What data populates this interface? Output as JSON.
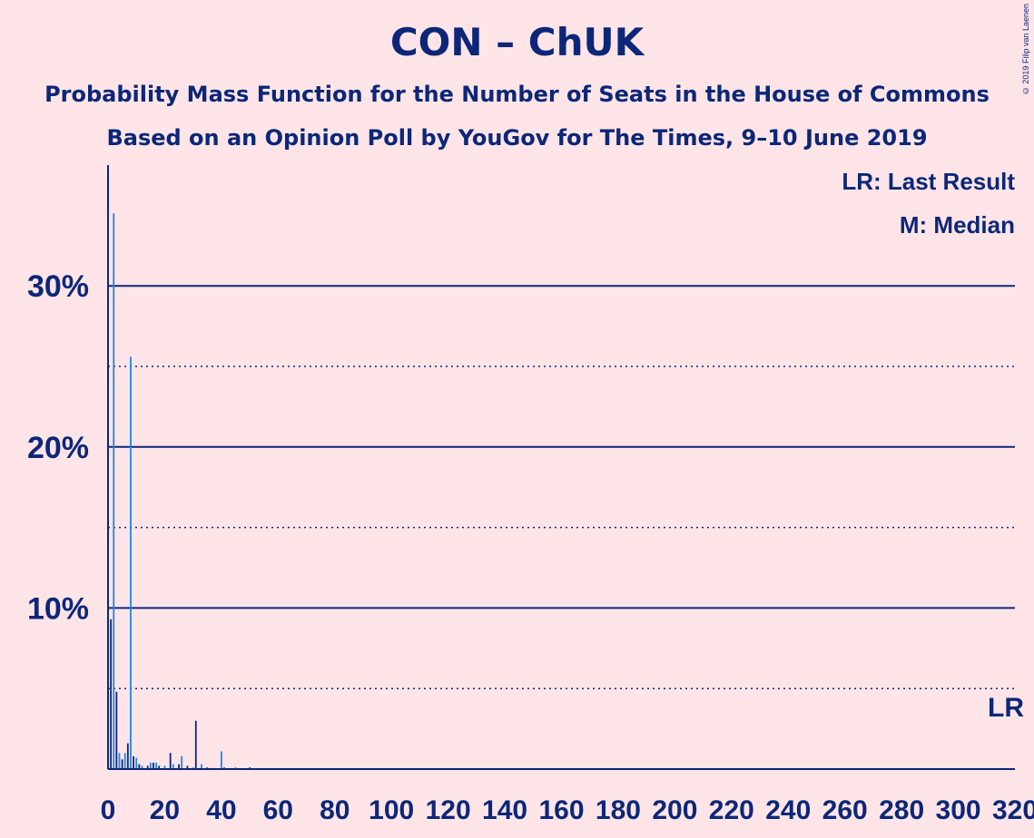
{
  "header": {
    "title": "CON – ChUK",
    "subtitle1": "Probability Mass Function for the Number of Seats in the House of Commons",
    "subtitle2": "Based on an Opinion Poll by YouGov for The Times, 9–10 June 2019",
    "copyright": "© 2019 Filip van Laenen"
  },
  "legend": {
    "last_result": "LR: Last Result",
    "median": "M: Median"
  },
  "colors": {
    "background": "#FFE5E8",
    "axis": "#0C2778",
    "bar_main": "#0C2778",
    "bar_alt": "#1E88E5"
  },
  "chart_data": {
    "type": "bar",
    "title": "CON – ChUK",
    "xlabel": "",
    "ylabel": "",
    "xlim": [
      0,
      320
    ],
    "ylim": [
      0,
      37.5
    ],
    "x_ticks": [
      0,
      20,
      40,
      60,
      80,
      100,
      120,
      140,
      160,
      180,
      200,
      220,
      240,
      260,
      280,
      300,
      320
    ],
    "y_ticks": [
      10,
      20,
      30
    ],
    "y_tick_labels": [
      "10%",
      "20%",
      "30%"
    ],
    "y_minor_dotted": [
      5,
      15,
      25
    ],
    "grid": true,
    "legend_position": "top-right",
    "last_result_marker": "LR",
    "x": [
      0,
      1,
      2,
      3,
      4,
      5,
      6,
      7,
      8,
      9,
      10,
      11,
      12,
      14,
      15,
      16,
      17,
      18,
      20,
      22,
      23,
      25,
      26,
      28,
      30,
      31,
      33,
      35,
      40,
      41,
      45,
      50,
      55,
      58
    ],
    "values": [
      12.9,
      9.3,
      34.5,
      4.8,
      1.0,
      0.6,
      1.0,
      1.6,
      25.6,
      0.8,
      0.7,
      0.3,
      0.2,
      0.2,
      0.4,
      0.4,
      0.4,
      0.2,
      0.2,
      1.0,
      0.3,
      0.3,
      0.8,
      0.2,
      0.1,
      3.0,
      0.3,
      0.1,
      1.1,
      0.1,
      0.1,
      0.1,
      0.05,
      0.05
    ]
  }
}
